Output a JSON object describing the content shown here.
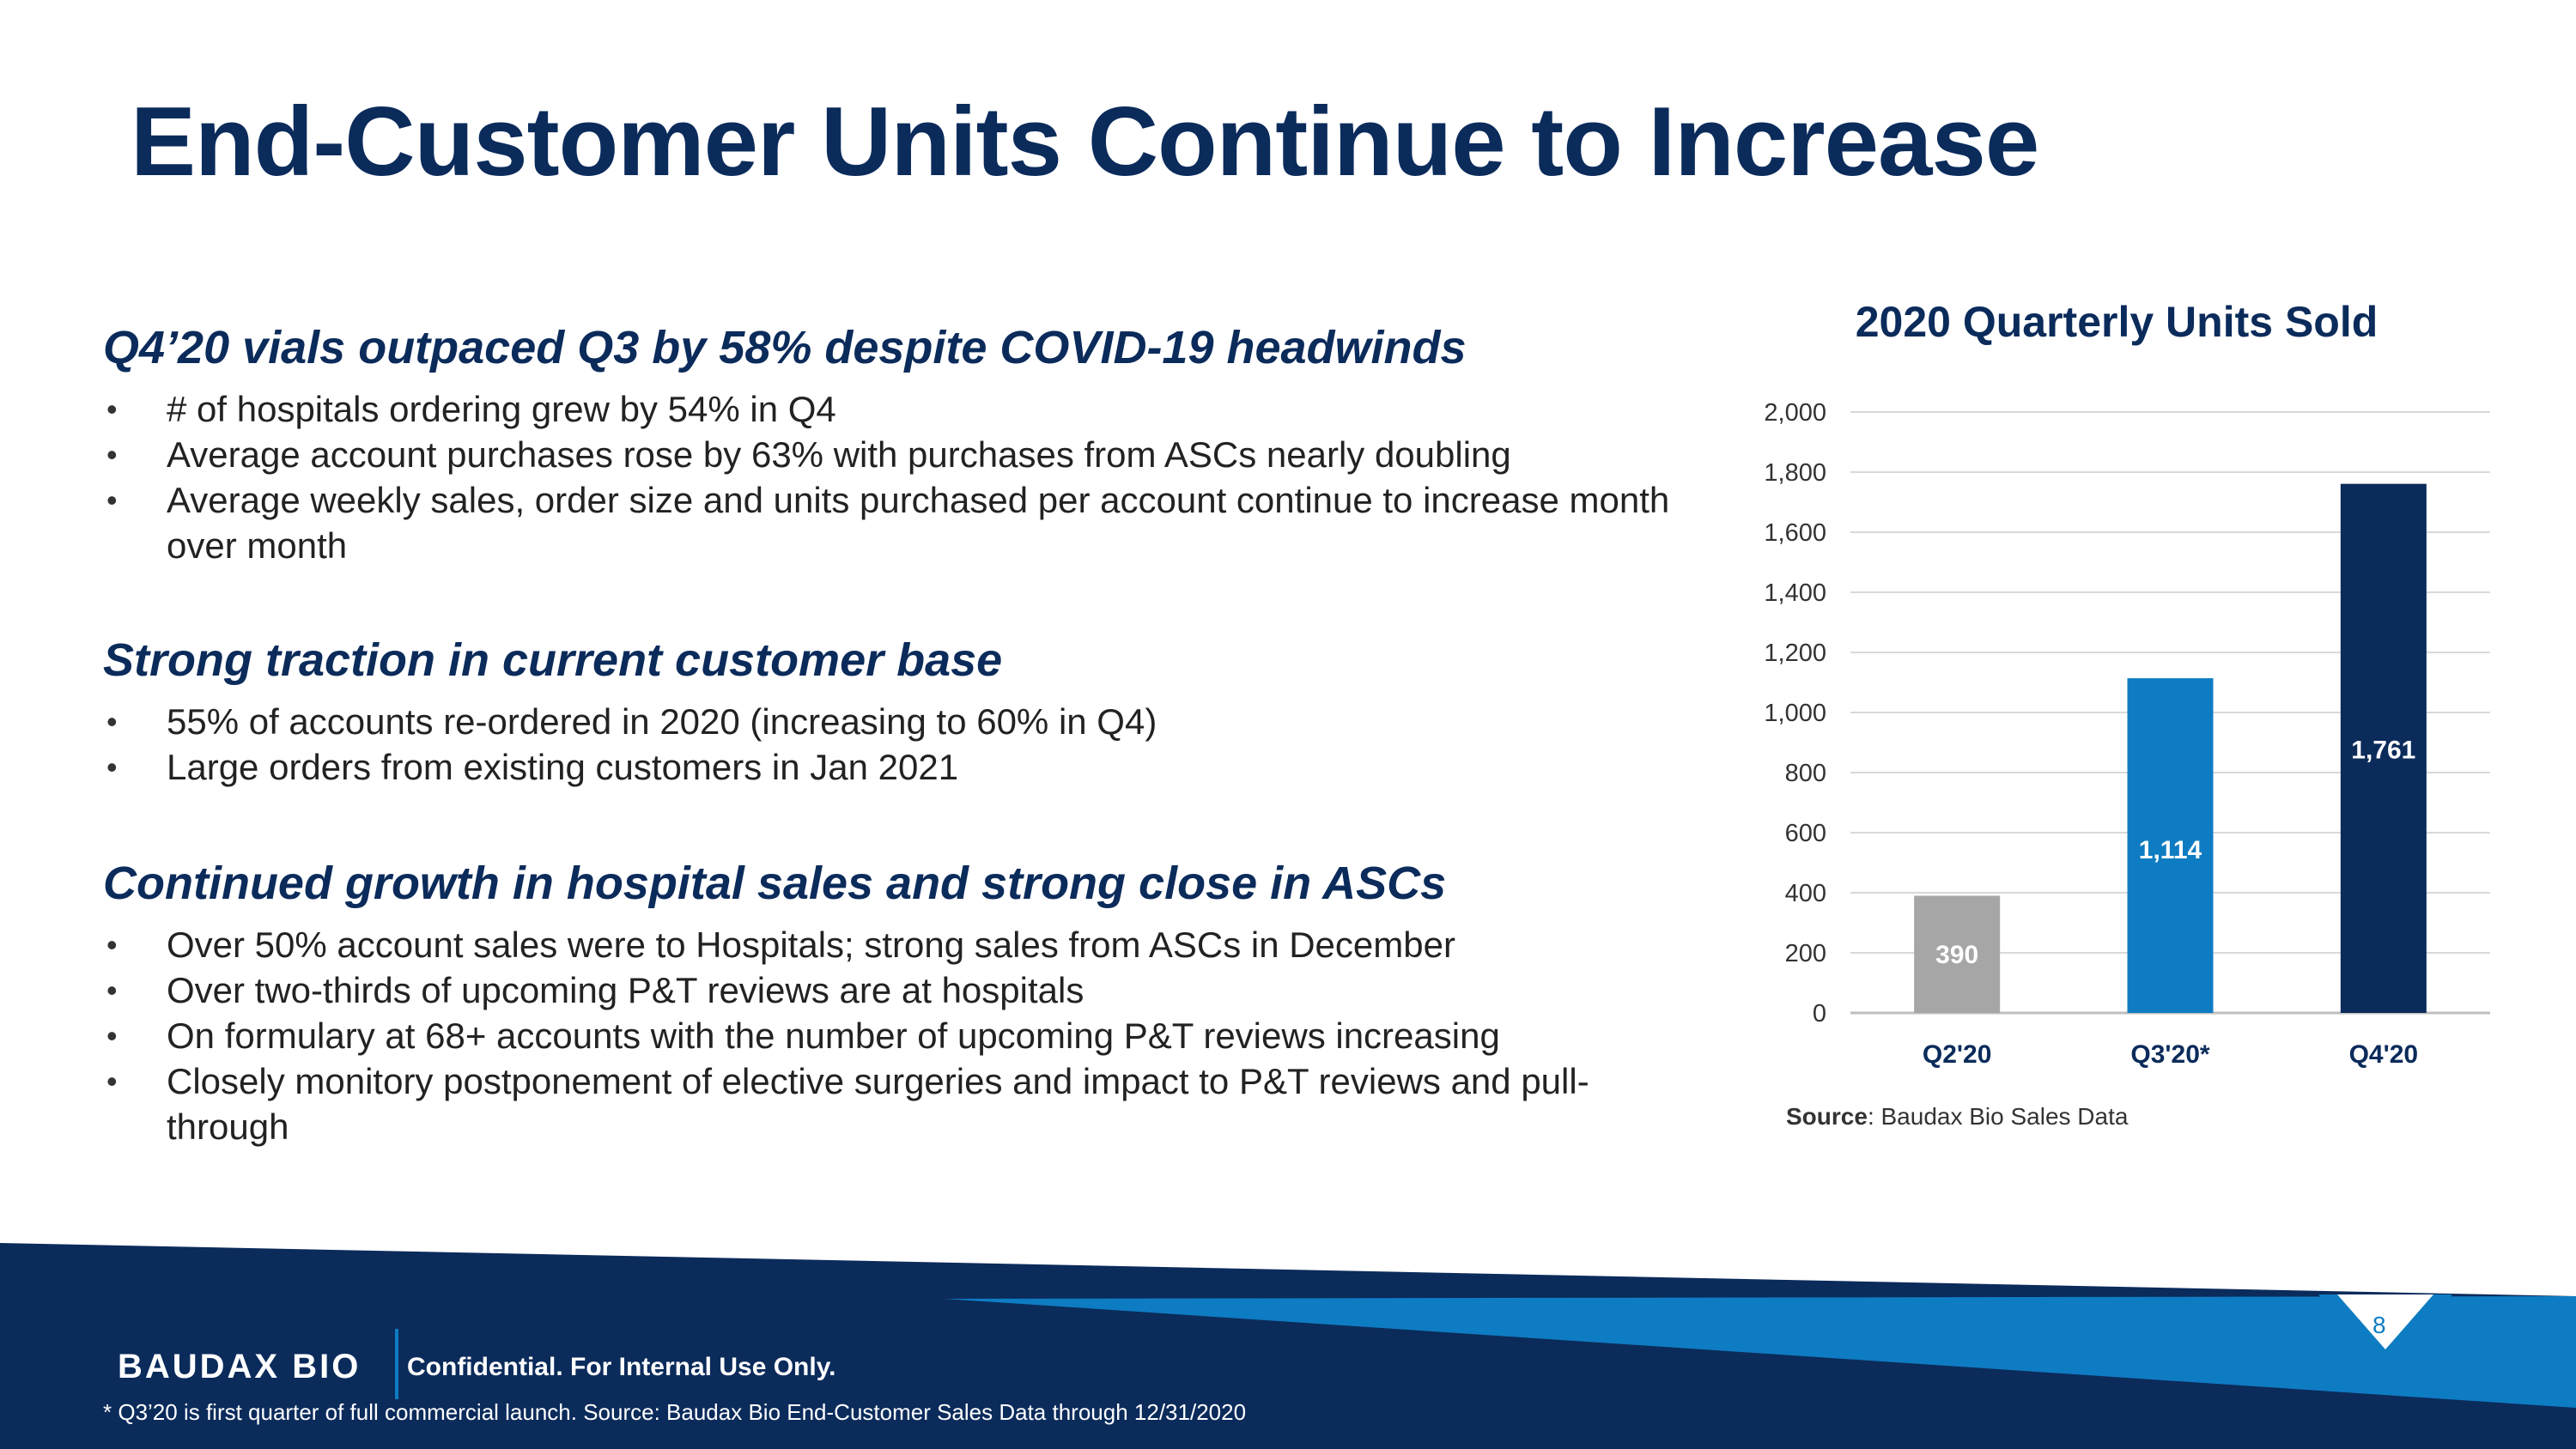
{
  "slide": {
    "title": "End-Customer Units Continue to Increase",
    "sections": [
      {
        "heading": "Q4’20 vials outpaced Q3 by 58% despite COVID-19 headwinds",
        "bullets": [
          "# of hospitals ordering grew by 54% in Q4",
          "Average account purchases rose by 63% with purchases from ASCs nearly doubling",
          "Average weekly sales, order size and units purchased per account continue to increase month over month"
        ]
      },
      {
        "heading": "Strong traction in current customer base",
        "bullets": [
          "55% of accounts re-ordered in 2020 (increasing to 60% in Q4)",
          "Large orders from existing customers in Jan 2021"
        ]
      },
      {
        "heading": "Continued growth in hospital sales and strong close in ASCs",
        "bullets": [
          "Over 50% account sales were to Hospitals; strong sales from ASCs in December",
          "Over two-thirds of upcoming P&T reviews are at hospitals",
          "On formulary at 68+ accounts with the number of upcoming P&T reviews increasing",
          "Closely monitory postponement of elective surgeries and impact to P&T reviews and pull-through"
        ]
      }
    ]
  },
  "chart_data": {
    "type": "bar",
    "title": "2020 Quarterly Units Sold",
    "categories": [
      "Q2'20",
      "Q3'20*",
      "Q4'20"
    ],
    "values": [
      390,
      1114,
      1761
    ],
    "value_labels": [
      "390",
      "1,114",
      "1,761"
    ],
    "bar_colors": [
      "#a6a6a6",
      "#0e7cc2",
      "#0b2b5b"
    ],
    "ylim": [
      0,
      2000
    ],
    "yticks": [
      0,
      200,
      400,
      600,
      800,
      1000,
      1200,
      1400,
      1600,
      1800,
      2000
    ],
    "ytick_labels": [
      "0",
      "200",
      "400",
      "600",
      "800",
      "1,000",
      "1,200",
      "1,400",
      "1,600",
      "1,800",
      "2,000"
    ],
    "grid": true,
    "legend": false,
    "source_label": "Source",
    "source_text": ": Baudax Bio Sales Data"
  },
  "footer": {
    "logo": "BAUDAX BIO",
    "confidential": "Confidential.  For Internal Use Only.",
    "footnote": "* Q3’20 is first quarter of full commercial launch.  Source: Baudax Bio End-Customer Sales Data through 12/31/2020",
    "page_number": "8"
  },
  "colors": {
    "title": "#0b2b5b",
    "navy": "#0b2b5b",
    "accent_blue": "#0e7cc2",
    "gray_bar": "#a6a6a6"
  }
}
